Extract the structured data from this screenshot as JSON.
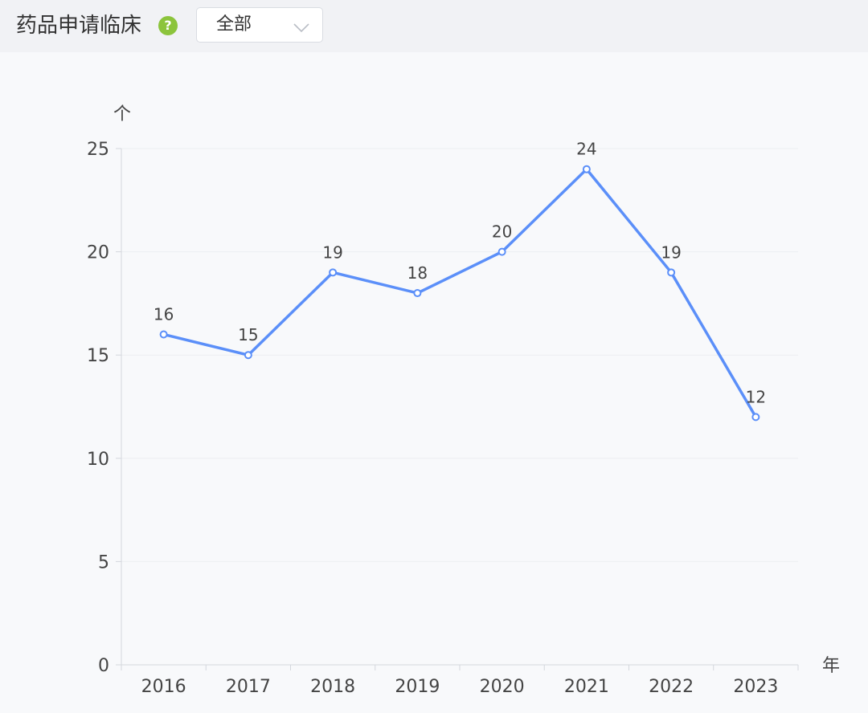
{
  "header": {
    "title": "药品申请临床",
    "help_icon": "question-circle-icon",
    "help_symbol": "?",
    "filter": {
      "selected": "全部",
      "icon": "chevron-down-icon"
    }
  },
  "chart_data": {
    "type": "line",
    "categories": [
      "2016",
      "2017",
      "2018",
      "2019",
      "2020",
      "2021",
      "2022",
      "2023"
    ],
    "series": [
      {
        "values": [
          16,
          15,
          19,
          18,
          20,
          24,
          19,
          12
        ],
        "color": "#5b8ff9"
      }
    ],
    "yunit": "个",
    "xunit": "年",
    "ylim": [
      0,
      25
    ],
    "yticks": [
      0,
      5,
      10,
      15,
      20,
      25
    ],
    "grid": true,
    "data_labels": true
  }
}
